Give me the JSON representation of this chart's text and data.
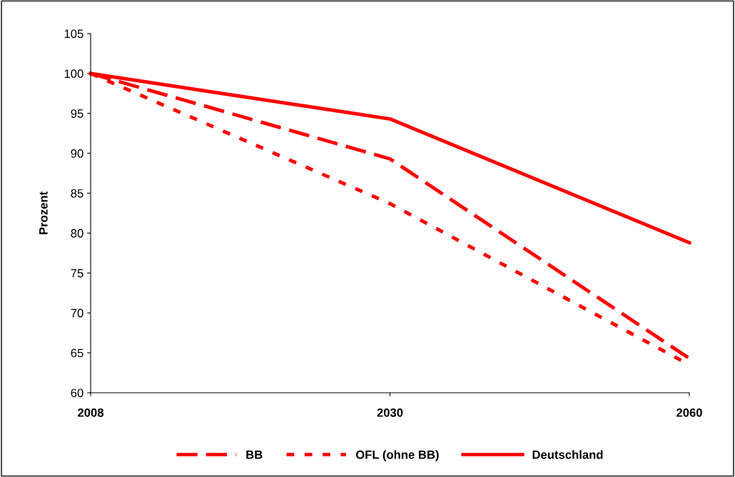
{
  "chart_data": {
    "type": "line",
    "ylabel": "Prozent",
    "categories": [
      "2008",
      "2030",
      "2060"
    ],
    "series": [
      {
        "name": "BB",
        "color": "#ff0000",
        "line_style": "dashed",
        "values": [
          100,
          89.3,
          64.3
        ]
      },
      {
        "name": "OFL (ohne BB)",
        "color": "#ff0000",
        "line_style": "dotted",
        "values": [
          100,
          83.7,
          63.5
        ]
      },
      {
        "name": "Deutschland",
        "color": "#ff0000",
        "line_style": "solid",
        "values": [
          100,
          94.3,
          78.8
        ]
      }
    ],
    "ylim": [
      60,
      105
    ],
    "yticks": [
      60,
      65,
      70,
      75,
      80,
      85,
      90,
      95,
      100,
      105
    ],
    "grid": false,
    "legend": "bottom",
    "marker": "none"
  }
}
